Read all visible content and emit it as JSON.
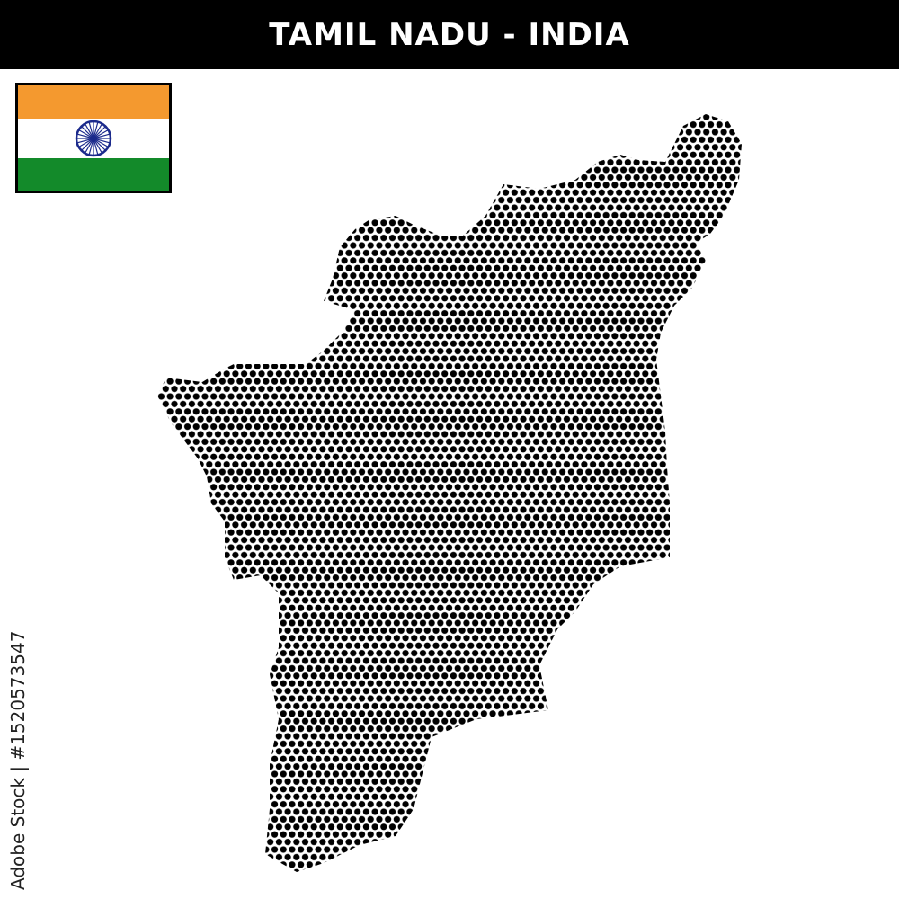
{
  "header": {
    "title": "TAMIL NADU - INDIA"
  },
  "flag": {
    "country": "India",
    "colors": {
      "saffron": "#F4992F",
      "white": "#FFFFFF",
      "green": "#138A2A",
      "chakra": "#1B2A8C"
    }
  },
  "map": {
    "region": "Tamil Nadu",
    "style": "hexagonal dot pattern",
    "dot_color": "#000000"
  },
  "credit": {
    "text": "Adobe Stock | #1520573547"
  }
}
